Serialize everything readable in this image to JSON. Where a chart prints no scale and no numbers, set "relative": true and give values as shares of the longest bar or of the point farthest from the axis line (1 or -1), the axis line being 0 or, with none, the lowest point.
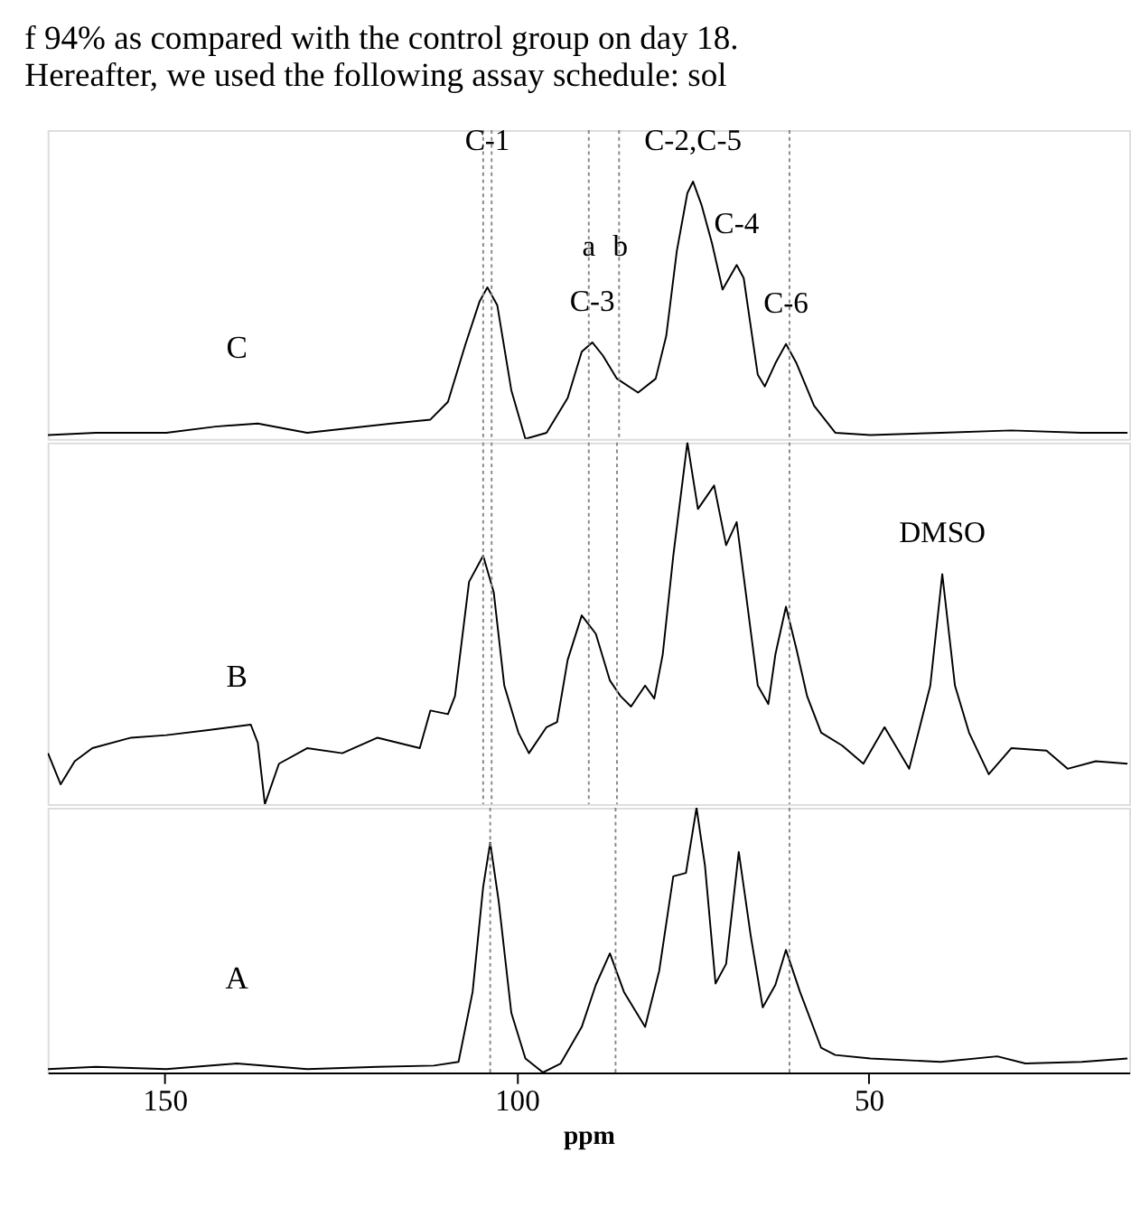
{
  "chart_data": [
    {
      "type": "line",
      "relative": true,
      "xlim": [
        166.6,
        13
      ],
      "tick_labels": false,
      "annotations": [
        "f 94% as compared with the control group on day 18.",
        "Hereafter, we used the following assay schedule: sol",
        {
          "text": "C-1",
          "x": 104.15,
          "y": 1.0
        },
        {
          "text": "C-3",
          "x": 89.25,
          "y": 0.375
        },
        {
          "text": "C-2,C-5",
          "x": 74.95,
          "y": 1
        },
        {
          "text": "C-4",
          "x": 68.75,
          "y": 0.676
        },
        {
          "text": "C-6",
          "x": 61.75,
          "y": 0.369
        },
        {
          "text": "a",
          "x": 89.75,
          "y": 0.59
        },
        {
          "text": "b",
          "x": 85.25,
          "y": 0.59
        }
      ],
      "ref_lines": [
        {
          "axis": "x",
          "value": 104.75,
          "color": "#888888",
          "line_style": "dotted"
        },
        {
          "axis": "x",
          "value": 103.55,
          "color": "#888888",
          "line_style": "dotted"
        },
        {
          "axis": "x",
          "value": 89.75,
          "color": "#888888",
          "line_style": "dotted"
        },
        {
          "axis": "x",
          "value": 85.45,
          "color": "#888888",
          "line_style": "dotted"
        },
        {
          "axis": "x",
          "value": 61.25,
          "color": "#888888",
          "line_style": "dotted"
        }
      ],
      "x": [
        166.55,
        159.75,
        149.75,
        142.75,
        136.75,
        129.75,
        124.75,
        117.75,
        112.25,
        109.75,
        107.25,
        105.25,
        104.15,
        102.75,
        100.75,
        98.75,
        95.75,
        92.75,
        90.75,
        89.25,
        87.75,
        85.75,
        82.75,
        80.25,
        78.75,
        77.25,
        75.75,
        74.95,
        73.75,
        72.25,
        70.75,
        68.75,
        67.75,
        65.75,
        64.75,
        63.25,
        61.75,
        60.25,
        57.75,
        54.75,
        49.75,
        39.75,
        29.75,
        19.75,
        13.25
      ],
      "series": [
        {
          "name": "C",
          "color": "#000000",
          "values": [
            0.015,
            0.024,
            0.024,
            0.048,
            0.06,
            0.024,
            0.039,
            0.06,
            0.075,
            0.144,
            0.369,
            0.535,
            0.589,
            0.52,
            0.189,
            0,
            0.024,
            0.159,
            0.339,
            0.375,
            0.324,
            0.234,
            0.18,
            0.234,
            0.4,
            0.73,
            0.955,
            1,
            0.91,
            0.76,
            0.58,
            0.676,
            0.625,
            0.249,
            0.204,
            0.294,
            0.369,
            0.294,
            0.129,
            0.024,
            0.015,
            0.024,
            0.033,
            0.024,
            0.024
          ]
        }
      ]
    },
    {
      "type": "line",
      "relative": true,
      "xlim": [
        166.6,
        13
      ],
      "tick_labels": false,
      "annotations": [
        {
          "text": "DMSO",
          "x": 39.55,
          "y": 0.636
        }
      ],
      "ref_lines": [
        {
          "axis": "x",
          "value": 104.75,
          "color": "#888888",
          "line_style": "dotted"
        },
        {
          "axis": "x",
          "value": 103.55,
          "color": "#888888",
          "line_style": "dotted"
        },
        {
          "axis": "x",
          "value": 89.75,
          "color": "#888888",
          "line_style": "dotted"
        },
        {
          "axis": "x",
          "value": 85.75,
          "color": "#888888",
          "line_style": "dotted"
        },
        {
          "axis": "x",
          "value": 61.25,
          "color": "#888888",
          "line_style": "dotted"
        }
      ],
      "x": [
        166.55,
        164.75,
        162.75,
        160.25,
        154.75,
        149.75,
        143.75,
        137.75,
        136.75,
        135.75,
        133.75,
        129.75,
        124.75,
        119.75,
        113.75,
        112.25,
        109.75,
        108.75,
        106.75,
        104.75,
        103.25,
        101.75,
        99.75,
        98.25,
        95.75,
        94.25,
        92.75,
        90.75,
        88.75,
        86.75,
        85.25,
        83.75,
        81.75,
        80.45,
        79.25,
        77.75,
        75.75,
        74.25,
        71.95,
        70.25,
        68.75,
        67.75,
        65.75,
        64.25,
        63.25,
        61.75,
        60.25,
        58.75,
        56.75,
        53.75,
        50.75,
        47.75,
        44.25,
        41.25,
        39.55,
        37.75,
        35.75,
        32.95,
        29.75,
        24.75,
        21.75,
        17.75,
        13.25
      ],
      "series": [
        {
          "name": "B",
          "color": "#000000",
          "values": [
            0.141,
            0.055,
            0.119,
            0.155,
            0.184,
            0.191,
            0.205,
            0.22,
            0.17,
            0,
            0.112,
            0.155,
            0.141,
            0.184,
            0.155,
            0.259,
            0.249,
            0.299,
            0.615,
            0.687,
            0.586,
            0.328,
            0.198,
            0.141,
            0.213,
            0.227,
            0.399,
            0.522,
            0.471,
            0.342,
            0.299,
            0.27,
            0.328,
            0.292,
            0.414,
            0.687,
            1,
            0.816,
            0.881,
            0.716,
            0.78,
            0.629,
            0.328,
            0.277,
            0.414,
            0.546,
            0.428,
            0.299,
            0.198,
            0.162,
            0.112,
            0.213,
            0.098,
            0.328,
            0.636,
            0.328,
            0.198,
            0.083,
            0.155,
            0.148,
            0.098,
            0.119,
            0.112
          ]
        }
      ]
    },
    {
      "type": "line",
      "relative": true,
      "xlim": [
        166.6,
        13
      ],
      "xticks": [
        150,
        100,
        50
      ],
      "xlabel": "ppm",
      "tick_labels": "x",
      "ref_lines": [
        {
          "axis": "x",
          "value": 103.75,
          "color": "#888888",
          "line_style": "dotted"
        },
        {
          "axis": "x",
          "value": 85.95,
          "color": "#888888",
          "line_style": "dotted"
        },
        {
          "axis": "x",
          "value": 61.25,
          "color": "#888888",
          "line_style": "dotted"
        }
      ],
      "x": [
        166.55,
        159.75,
        149.75,
        139.75,
        129.75,
        119.75,
        111.75,
        108.25,
        106.25,
        104.75,
        103.75,
        102.55,
        100.75,
        98.75,
        96.25,
        93.75,
        90.75,
        88.75,
        86.75,
        84.75,
        81.75,
        79.75,
        77.75,
        75.95,
        74.45,
        73.25,
        71.75,
        70.25,
        68.45,
        66.75,
        65.05,
        63.25,
        61.75,
        59.75,
        56.75,
        54.75,
        49.75,
        39.75,
        31.75,
        27.75,
        19.75,
        13.25
      ],
      "series": [
        {
          "name": "A",
          "color": "#000000",
          "values": [
            0.013,
            0.021,
            0.013,
            0.034,
            0.013,
            0.021,
            0.026,
            0.04,
            0.304,
            0.701,
            0.868,
            0.648,
            0.225,
            0.053,
            0,
            0.034,
            0.172,
            0.331,
            0.45,
            0.304,
            0.172,
            0.384,
            0.741,
            0.754,
            1,
            0.781,
            0.336,
            0.41,
            0.833,
            0.516,
            0.246,
            0.331,
            0.463,
            0.304,
            0.093,
            0.066,
            0.053,
            0.04,
            0.061,
            0.034,
            0.04,
            0.053
          ]
        }
      ]
    }
  ]
}
